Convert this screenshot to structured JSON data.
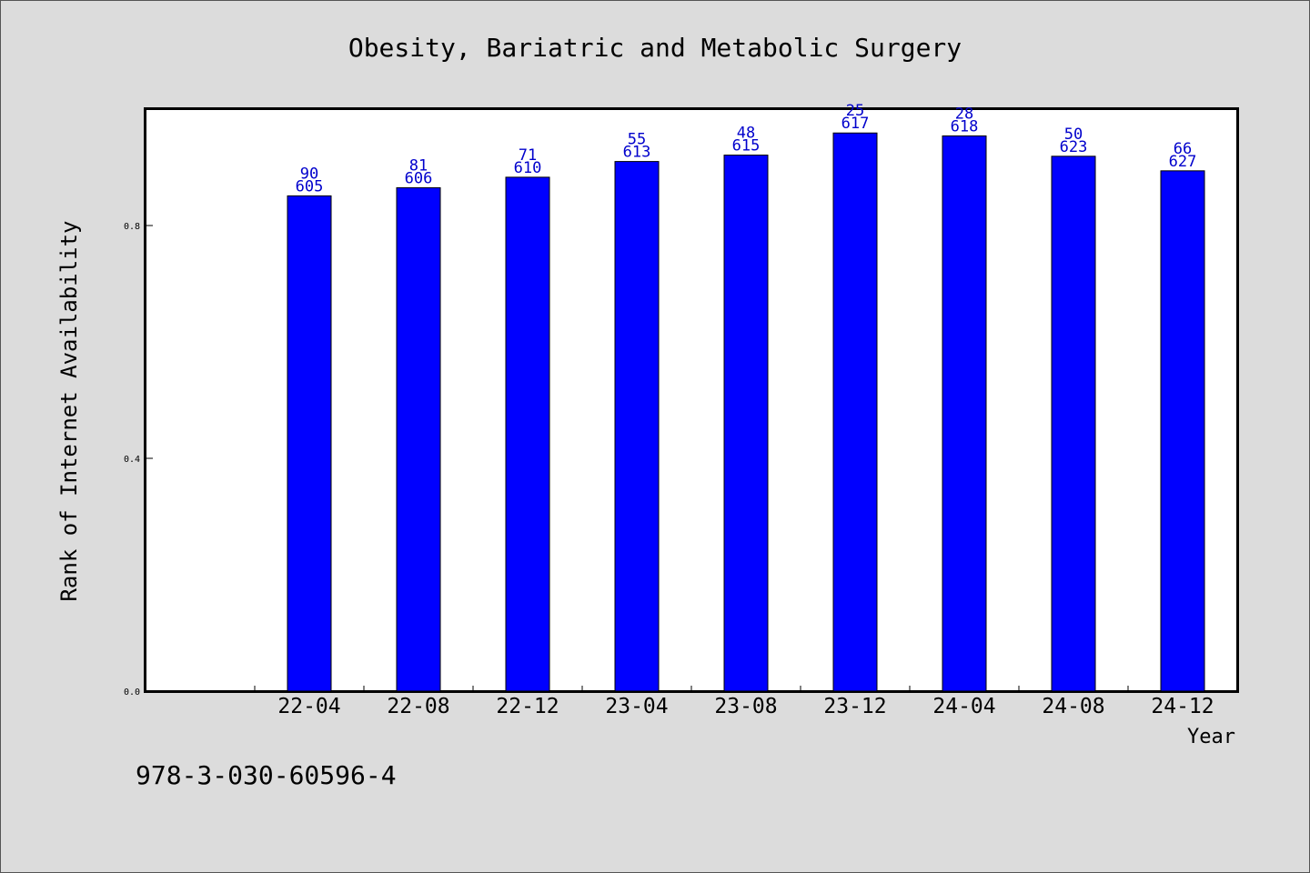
{
  "chart_data": {
    "type": "bar",
    "title": "Obesity, Bariatric and Metabolic Surgery",
    "xlabel": "Year",
    "ylabel": "Rank of Internet Availability",
    "categories": [
      "22-04",
      "22-08",
      "22-12",
      "23-04",
      "23-08",
      "23-12",
      "24-04",
      "24-08",
      "24-12"
    ],
    "values": [
      0.851,
      0.865,
      0.883,
      0.91,
      0.921,
      0.959,
      0.954,
      0.919,
      0.894
    ],
    "label_top": [
      "90",
      "81",
      "71",
      "55",
      "48",
      "25",
      "28",
      "50",
      "66"
    ],
    "label_bottom": [
      "605",
      "606",
      "610",
      "613",
      "615",
      "617",
      "618",
      "623",
      "627"
    ],
    "yticks": [
      "0.0",
      "0.4",
      "0.8"
    ],
    "ytick_values": [
      0.0,
      0.4,
      0.8
    ],
    "ylim": [
      0,
      1.0
    ],
    "grid": false,
    "legend": "none",
    "bar_color": "#0000ff",
    "label_color": "#0000cc"
  },
  "footer": {
    "isbn": "978-3-030-60596-4"
  }
}
